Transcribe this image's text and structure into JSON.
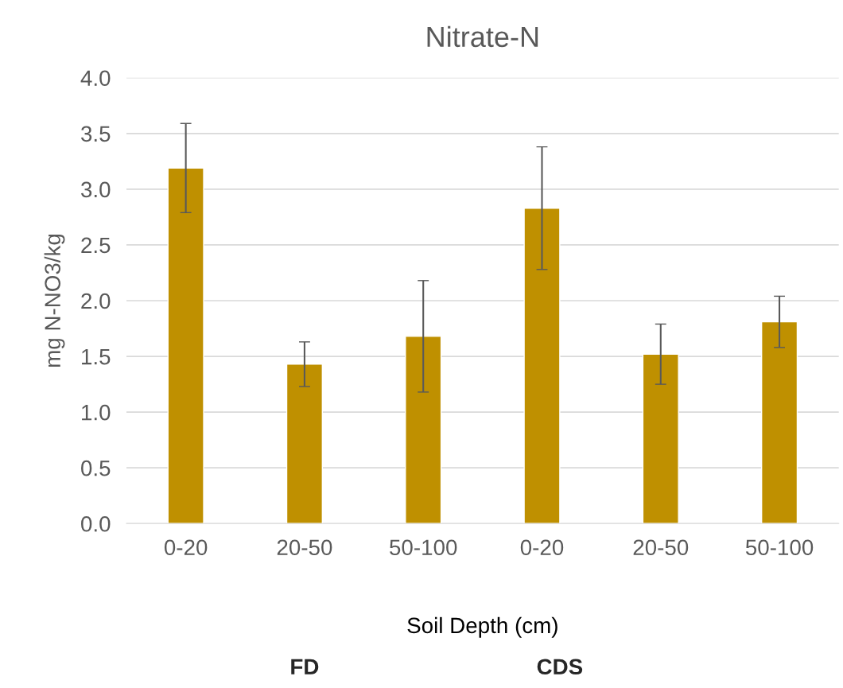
{
  "chart_data": {
    "type": "bar",
    "title": "Nitrate-N",
    "xlabel": "Soil Depth (cm)",
    "ylabel": "mg N-NO3/kg",
    "categories": [
      "0-20",
      "20-50",
      "50-100",
      "0-20",
      "20-50",
      "50-100"
    ],
    "values": [
      3.19,
      1.43,
      1.68,
      2.83,
      1.52,
      1.81
    ],
    "errors": [
      0.4,
      0.2,
      0.5,
      0.55,
      0.27,
      0.23
    ],
    "color": "#bf9000",
    "ylim": [
      0,
      4
    ],
    "yticks": [
      {
        "value": 0,
        "label": "0.0"
      },
      {
        "value": 0.5,
        "label": "0.5"
      },
      {
        "value": 1,
        "label": "1.0"
      },
      {
        "value": 1.5,
        "label": "1.5"
      },
      {
        "value": 2,
        "label": "2.0"
      },
      {
        "value": 2.5,
        "label": "2.5"
      },
      {
        "value": 3,
        "label": "3.0"
      },
      {
        "value": 3.5,
        "label": "3.5"
      },
      {
        "value": 4,
        "label": "4.0"
      }
    ],
    "grid": "y",
    "annotations": [
      "FD",
      "CDS"
    ]
  }
}
